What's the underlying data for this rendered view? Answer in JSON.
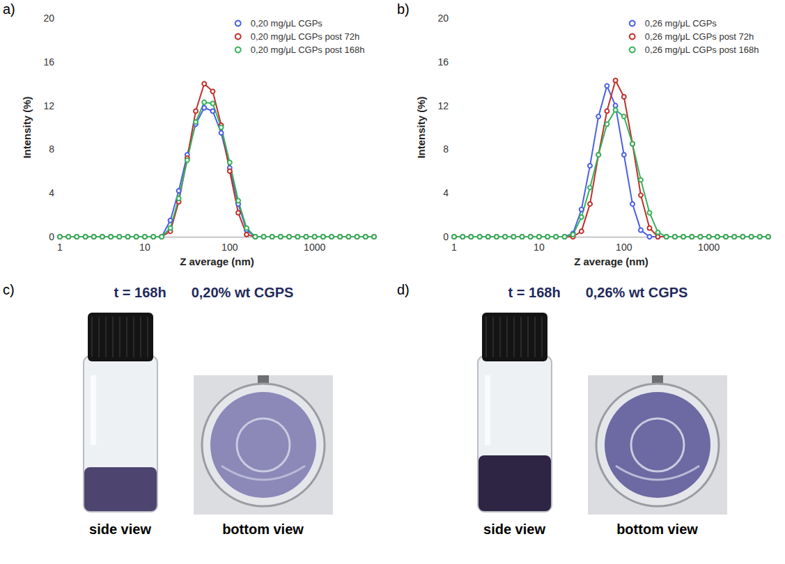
{
  "chart_data": [
    {
      "type": "line",
      "panel": "a)",
      "log": "x",
      "grid": false,
      "legend": "top-right",
      "marker": "emptyCircle",
      "line_style": "solid",
      "x_label": "Z average (nm)",
      "y_label": "Intensity (%)",
      "x": [
        1,
        1.26,
        1.58,
        2,
        2.51,
        3.16,
        3.98,
        5.01,
        6.31,
        7.94,
        10,
        12.6,
        15.8,
        20,
        25.1,
        31.6,
        39.8,
        50.1,
        63.1,
        79.4,
        100,
        126,
        158,
        200,
        251,
        316,
        398,
        501,
        631,
        794,
        1000,
        1259,
        1585,
        1995,
        2512,
        3162,
        3981,
        5012
      ],
      "xlim": [
        1,
        5012
      ],
      "xticks": [
        1,
        10,
        100,
        1000
      ],
      "ylim": [
        0,
        20
      ],
      "yticks": [
        0,
        4,
        8,
        12,
        16,
        20
      ],
      "series": [
        {
          "name": "0,20 mg/μL CGPs",
          "color": "#4a5fe6",
          "values": [
            0,
            0,
            0,
            0,
            0,
            0,
            0,
            0,
            0,
            0,
            0,
            0,
            0,
            1.5,
            4.2,
            7.5,
            10.3,
            11.8,
            11.5,
            9.5,
            6.3,
            3,
            0.6,
            0,
            0,
            0,
            0,
            0,
            0,
            0,
            0,
            0,
            0,
            0,
            0,
            0,
            0,
            0
          ]
        },
        {
          "name": "0,20 mg/μL CGPs post 72h",
          "color": "#c0302a",
          "values": [
            0,
            0,
            0,
            0,
            0,
            0,
            0,
            0,
            0,
            0,
            0,
            0,
            0,
            0.5,
            3.2,
            7.2,
            11.5,
            14,
            13.3,
            10.2,
            6,
            2.2,
            0.2,
            0,
            0,
            0,
            0,
            0,
            0,
            0,
            0,
            0,
            0,
            0,
            0,
            0,
            0,
            0
          ]
        },
        {
          "name": "0,20 mg/μL CGPs post 168h",
          "color": "#35b35a",
          "values": [
            0,
            0,
            0,
            0,
            0,
            0,
            0,
            0,
            0,
            0,
            0,
            0,
            0,
            0.8,
            3.5,
            7,
            10.5,
            12.3,
            12.2,
            10,
            6.8,
            3.3,
            0.8,
            0,
            0,
            0,
            0,
            0,
            0,
            0,
            0,
            0,
            0,
            0,
            0,
            0,
            0,
            0
          ]
        }
      ]
    },
    {
      "type": "line",
      "panel": "b)",
      "log": "x",
      "grid": false,
      "legend": "top-right",
      "marker": "emptyCircle",
      "line_style": "solid",
      "x_label": "Z average (nm)",
      "y_label": "Intensity (%)",
      "x": [
        1,
        1.26,
        1.58,
        2,
        2.51,
        3.16,
        3.98,
        5.01,
        6.31,
        7.94,
        10,
        12.6,
        15.8,
        20,
        25.1,
        31.6,
        39.8,
        50.1,
        63.1,
        79.4,
        100,
        126,
        158,
        200,
        251,
        316,
        398,
        501,
        631,
        794,
        1000,
        1259,
        1585,
        1995,
        2512,
        3162,
        3981,
        5012
      ],
      "xlim": [
        1,
        5012
      ],
      "xticks": [
        1,
        10,
        100,
        1000
      ],
      "ylim": [
        0,
        20
      ],
      "yticks": [
        0,
        4,
        8,
        12,
        16,
        20
      ],
      "series": [
        {
          "name": "0,26 mg/μL CGPs",
          "color": "#4a5fe6",
          "values": [
            0,
            0,
            0,
            0,
            0,
            0,
            0,
            0,
            0,
            0,
            0,
            0,
            0,
            0,
            0.3,
            2.5,
            6.5,
            11,
            13.8,
            12,
            7.5,
            3,
            0.6,
            0,
            0,
            0,
            0,
            0,
            0,
            0,
            0,
            0,
            0,
            0,
            0,
            0,
            0,
            0
          ]
        },
        {
          "name": "0,26 mg/μL CGPs post 72h",
          "color": "#c0302a",
          "values": [
            0,
            0,
            0,
            0,
            0,
            0,
            0,
            0,
            0,
            0,
            0,
            0,
            0,
            0,
            0,
            0.5,
            3,
            7.5,
            11.5,
            14.3,
            12.8,
            8.5,
            3.8,
            0.8,
            0,
            0,
            0,
            0,
            0,
            0,
            0,
            0,
            0,
            0,
            0,
            0,
            0,
            0
          ]
        },
        {
          "name": "0,26 mg/μL CGPs post 168h",
          "color": "#35b35a",
          "values": [
            0,
            0,
            0,
            0,
            0,
            0,
            0,
            0,
            0,
            0,
            0,
            0,
            0,
            0,
            0.2,
            1.8,
            4.5,
            7.5,
            10.3,
            11.6,
            11,
            8.5,
            5.2,
            2.2,
            0.4,
            0,
            0,
            0,
            0,
            0,
            0,
            0,
            0,
            0,
            0,
            0,
            0,
            0
          ]
        }
      ]
    }
  ],
  "photo_panels": [
    {
      "panel": "c)",
      "time": "t = 168h",
      "sample": "0,20% wt CGPS",
      "views": [
        "side view",
        "bottom view"
      ]
    },
    {
      "panel": "d)",
      "time": "t = 168h",
      "sample": "0,26% wt CGPS",
      "views": [
        "side view",
        "bottom view"
      ]
    }
  ]
}
